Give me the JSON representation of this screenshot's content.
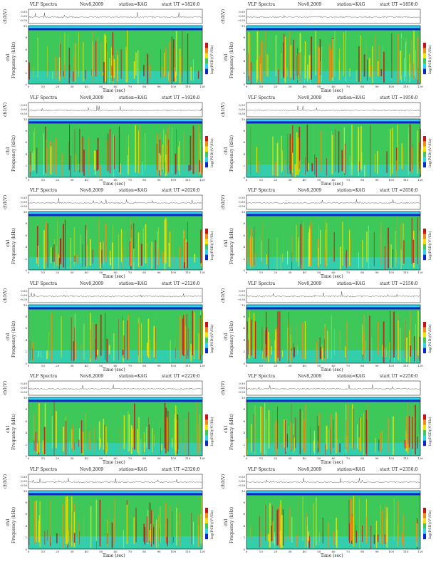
{
  "common": {
    "title": "VLF Spectra",
    "date": "Nov8,2009",
    "station": "station=KAG",
    "start_prefix": "start  UT  =",
    "ts_ylabel": "ch1(V)",
    "ts_ticks": [
      "0.50",
      "0.00",
      "-0.50"
    ],
    "spec_ylabel": "Frequency  (kHz)",
    "spec_channel": "ch1",
    "y_ticks": [
      "0",
      "2",
      "4",
      "6",
      "8",
      "10"
    ],
    "xlabel": "Time  (sec)",
    "x_ticks": [
      "0",
      "10",
      "20",
      "30",
      "40",
      "50",
      "60",
      "70",
      "80",
      "90",
      "100",
      "110",
      "120"
    ],
    "cb_label": "log(PSD)(V²/Hz)"
  },
  "colors": {
    "blue": "#0a28c8",
    "cyan": "#2ad4ee",
    "green": "#3ec85a",
    "yellow": "#f0e400",
    "orange": "#f08c14",
    "red": "#c81414"
  },
  "chart_data": [
    {
      "type": "heatmap",
      "start_ut": "1820:0",
      "x_range": [
        0,
        120
      ],
      "y_range": [
        0,
        10
      ],
      "xlabel": "Time  (sec)",
      "ylabel": "Frequency  (kHz)"
    },
    {
      "type": "heatmap",
      "start_ut": "1850:0",
      "x_range": [
        0,
        120
      ],
      "y_range": [
        0,
        10
      ],
      "xlabel": "Time  (sec)",
      "ylabel": "Frequency  (kHz)"
    },
    {
      "type": "heatmap",
      "start_ut": "1920:0",
      "x_range": [
        0,
        120
      ],
      "y_range": [
        0,
        10
      ],
      "xlabel": "Time  (sec)",
      "ylabel": "Frequency  (kHz)"
    },
    {
      "type": "heatmap",
      "start_ut": "1950:0",
      "x_range": [
        0,
        120
      ],
      "y_range": [
        0,
        10
      ],
      "xlabel": "Time  (sec)",
      "ylabel": "Frequency  (kHz)"
    },
    {
      "type": "heatmap",
      "start_ut": "2020:0",
      "x_range": [
        0,
        120
      ],
      "y_range": [
        0,
        10
      ],
      "xlabel": "Time  (sec)",
      "ylabel": "Frequency  (kHz)"
    },
    {
      "type": "heatmap",
      "start_ut": "2050:0",
      "x_range": [
        0,
        120
      ],
      "y_range": [
        0,
        10
      ],
      "xlabel": "Time  (sec)",
      "ylabel": "Frequency  (kHz)"
    },
    {
      "type": "heatmap",
      "start_ut": "2120:0",
      "x_range": [
        0,
        120
      ],
      "y_range": [
        0,
        10
      ],
      "xlabel": "Time  (sec)",
      "ylabel": "Frequency  (kHz)"
    },
    {
      "type": "heatmap",
      "start_ut": "2150:0",
      "x_range": [
        0,
        120
      ],
      "y_range": [
        0,
        10
      ],
      "xlabel": "Time  (sec)",
      "ylabel": "Frequency  (kHz)"
    },
    {
      "type": "heatmap",
      "start_ut": "2220:0",
      "x_range": [
        0,
        120
      ],
      "y_range": [
        0,
        10
      ],
      "xlabel": "Time  (sec)",
      "ylabel": "Frequency  (kHz)"
    },
    {
      "type": "heatmap",
      "start_ut": "2250:0",
      "x_range": [
        0,
        120
      ],
      "y_range": [
        0,
        10
      ],
      "xlabel": "Time  (sec)",
      "ylabel": "Frequency  (kHz)"
    },
    {
      "type": "heatmap",
      "start_ut": "2320:0",
      "x_range": [
        0,
        120
      ],
      "y_range": [
        0,
        10
      ],
      "xlabel": "Time  (sec)",
      "ylabel": "Frequency  (kHz)"
    },
    {
      "type": "heatmap",
      "start_ut": "2350:0",
      "x_range": [
        0,
        120
      ],
      "y_range": [
        0,
        10
      ],
      "xlabel": "Time  (sec)",
      "ylabel": "Frequency  (kHz)"
    }
  ]
}
